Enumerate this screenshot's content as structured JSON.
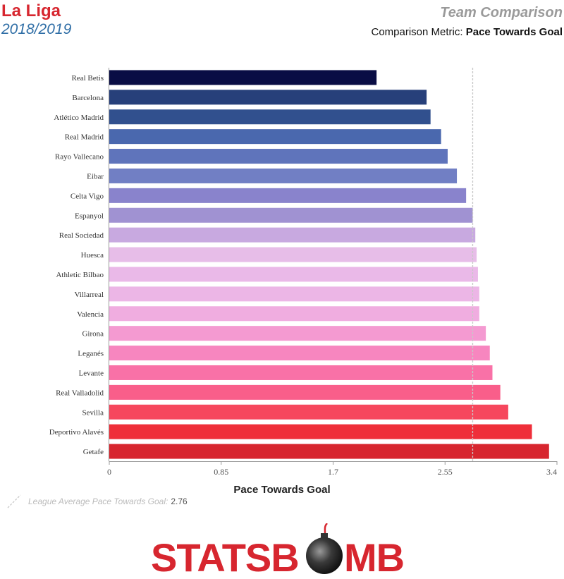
{
  "header": {
    "league": "La Liga",
    "season": "2018/2019",
    "title": "Team Comparison",
    "metric_prefix": "Comparison Metric:",
    "metric_name": "Pace Towards Goal"
  },
  "legend": {
    "label": "League Average Pace Towards Goal:",
    "value": "2.76"
  },
  "logo": {
    "text_left": "STATSB",
    "text_right": "MB"
  },
  "chart_data": {
    "type": "bar",
    "orientation": "horizontal",
    "xlabel": "Pace Towards Goal",
    "xlim": [
      0,
      3.4
    ],
    "xticks": [
      "0",
      "0.85",
      "1.7",
      "2.55",
      "3.4"
    ],
    "xtick_values": [
      0,
      0.85,
      1.7,
      2.55,
      3.4
    ],
    "reference_line": {
      "value": 2.76,
      "style": "dashed"
    },
    "categories": [
      "Real Betis",
      "Barcelona",
      "Atlético Madrid",
      "Real Madrid",
      "Rayo Vallecano",
      "Eibar",
      "Celta Vigo",
      "Espanyol",
      "Real Sociedad",
      "Huesca",
      "Athletic Bilbao",
      "Villarreal",
      "Valencia",
      "Girona",
      "Leganés",
      "Levante",
      "Real Valladolid",
      "Sevilla",
      "Deportivo Alavés",
      "Getafe"
    ],
    "values": [
      2.03,
      2.41,
      2.44,
      2.52,
      2.57,
      2.64,
      2.71,
      2.76,
      2.78,
      2.79,
      2.8,
      2.81,
      2.81,
      2.86,
      2.89,
      2.91,
      2.97,
      3.03,
      3.21,
      3.34
    ],
    "colors": [
      "#090d44",
      "#27407a",
      "#31508e",
      "#4a68ae",
      "#5f74bb",
      "#717fc4",
      "#8983cc",
      "#a092d2",
      "#c8a9e0",
      "#e7bde8",
      "#eab9e8",
      "#ecb6e6",
      "#f0ade0",
      "#f49ad1",
      "#f786bf",
      "#f971a7",
      "#f95e8a",
      "#f6475d",
      "#ef2f3a",
      "#d7262f"
    ],
    "grid": false
  }
}
